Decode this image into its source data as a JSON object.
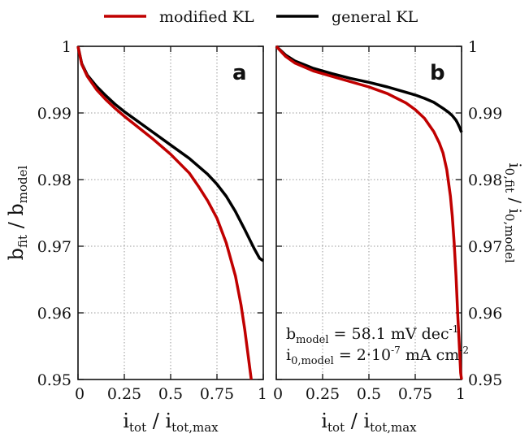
{
  "legend": [
    {
      "label": "modified KL",
      "color": "#c00000"
    },
    {
      "label": "general KL",
      "color": "#000000"
    }
  ],
  "chart_data": [
    {
      "type": "line",
      "panel": "a",
      "xlabel": {
        "main": "i",
        "sub": "tot",
        "sep": " / ",
        "main2": "i",
        "sub2": "tot,max"
      },
      "ylabel": {
        "main": "b",
        "sub": "fit",
        "sep": " / ",
        "main2": "b",
        "sub2": "model"
      },
      "xlim": [
        0,
        1
      ],
      "ylim": [
        0.95,
        1
      ],
      "x_ticks": [
        "0",
        "0.25",
        "0.5",
        "0.75",
        "1"
      ],
      "y_ticks": [
        "0.95",
        "0.96",
        "0.97",
        "0.98",
        "0.99",
        "1"
      ],
      "grid": true,
      "series": [
        {
          "name": "modified KL",
          "color": "#c00000",
          "x": [
            0,
            0.02,
            0.05,
            0.1,
            0.15,
            0.2,
            0.25,
            0.3,
            0.4,
            0.5,
            0.6,
            0.65,
            0.7,
            0.75,
            0.8,
            0.85,
            0.88,
            0.9,
            0.92,
            0.935
          ],
          "y": [
            1.0,
            0.9973,
            0.9955,
            0.9935,
            0.992,
            0.9907,
            0.9895,
            0.9884,
            0.9862,
            0.9838,
            0.981,
            0.979,
            0.9768,
            0.9742,
            0.9705,
            0.9655,
            0.9612,
            0.9575,
            0.9532,
            0.95
          ]
        },
        {
          "name": "general KL",
          "color": "#000000",
          "x": [
            0,
            0.02,
            0.05,
            0.1,
            0.15,
            0.2,
            0.25,
            0.3,
            0.4,
            0.5,
            0.6,
            0.7,
            0.75,
            0.8,
            0.85,
            0.9,
            0.95,
            0.98,
            1.0
          ],
          "y": [
            1.0,
            0.9974,
            0.9957,
            0.994,
            0.9926,
            0.9913,
            0.9902,
            0.9892,
            0.9872,
            0.9852,
            0.9832,
            0.9808,
            0.9793,
            0.9775,
            0.9752,
            0.9725,
            0.9697,
            0.9682,
            0.9678
          ]
        }
      ]
    },
    {
      "type": "line",
      "panel": "b",
      "xlabel": {
        "main": "i",
        "sub": "tot",
        "sep": " / ",
        "main2": "i",
        "sub2": "tot,max"
      },
      "ylabel": {
        "main": "i",
        "sub": "0,fit",
        "sep": " / ",
        "main2": "i",
        "sub2": "0,model"
      },
      "xlim": [
        0,
        1
      ],
      "ylim": [
        0.95,
        1
      ],
      "x_ticks": [
        "0",
        "0.25",
        "0.5",
        "0.75",
        "1"
      ],
      "y_ticks": [
        "0.95",
        "0.96",
        "0.97",
        "0.98",
        "0.99",
        "1"
      ],
      "grid": true,
      "series": [
        {
          "name": "modified KL",
          "color": "#c00000",
          "x": [
            0,
            0.05,
            0.1,
            0.2,
            0.3,
            0.4,
            0.5,
            0.6,
            0.7,
            0.75,
            0.8,
            0.85,
            0.88,
            0.9,
            0.92,
            0.94,
            0.95,
            0.96,
            0.97,
            0.98,
            0.99,
            0.995,
            1.0
          ],
          "y": [
            1.0,
            0.9985,
            0.9975,
            0.9963,
            0.9955,
            0.9947,
            0.9939,
            0.9929,
            0.9915,
            0.9905,
            0.9892,
            0.9872,
            0.9855,
            0.984,
            0.9815,
            0.9775,
            0.9745,
            0.9705,
            0.9655,
            0.9595,
            0.954,
            0.951,
            0.95
          ]
        },
        {
          "name": "general KL",
          "color": "#000000",
          "x": [
            0,
            0.05,
            0.1,
            0.2,
            0.3,
            0.4,
            0.5,
            0.6,
            0.7,
            0.75,
            0.8,
            0.85,
            0.9,
            0.93,
            0.95,
            0.97,
            0.98,
            0.99,
            1.0
          ],
          "y": [
            1.0,
            0.9987,
            0.9978,
            0.9967,
            0.9959,
            0.9952,
            0.9946,
            0.9939,
            0.9931,
            0.9927,
            0.9922,
            0.9916,
            0.9907,
            0.9901,
            0.9896,
            0.9889,
            0.9884,
            0.9878,
            0.9871
          ]
        }
      ],
      "annotations": [
        {
          "main": "b",
          "sub": "model",
          "text": " = 58.1 mV dec",
          "sup": "-1"
        },
        {
          "main": "i",
          "sub": "0,model",
          "text": " = 2·10",
          "sup": "-7",
          "text2": " mA cm",
          "sup2": "-2"
        }
      ]
    }
  ]
}
